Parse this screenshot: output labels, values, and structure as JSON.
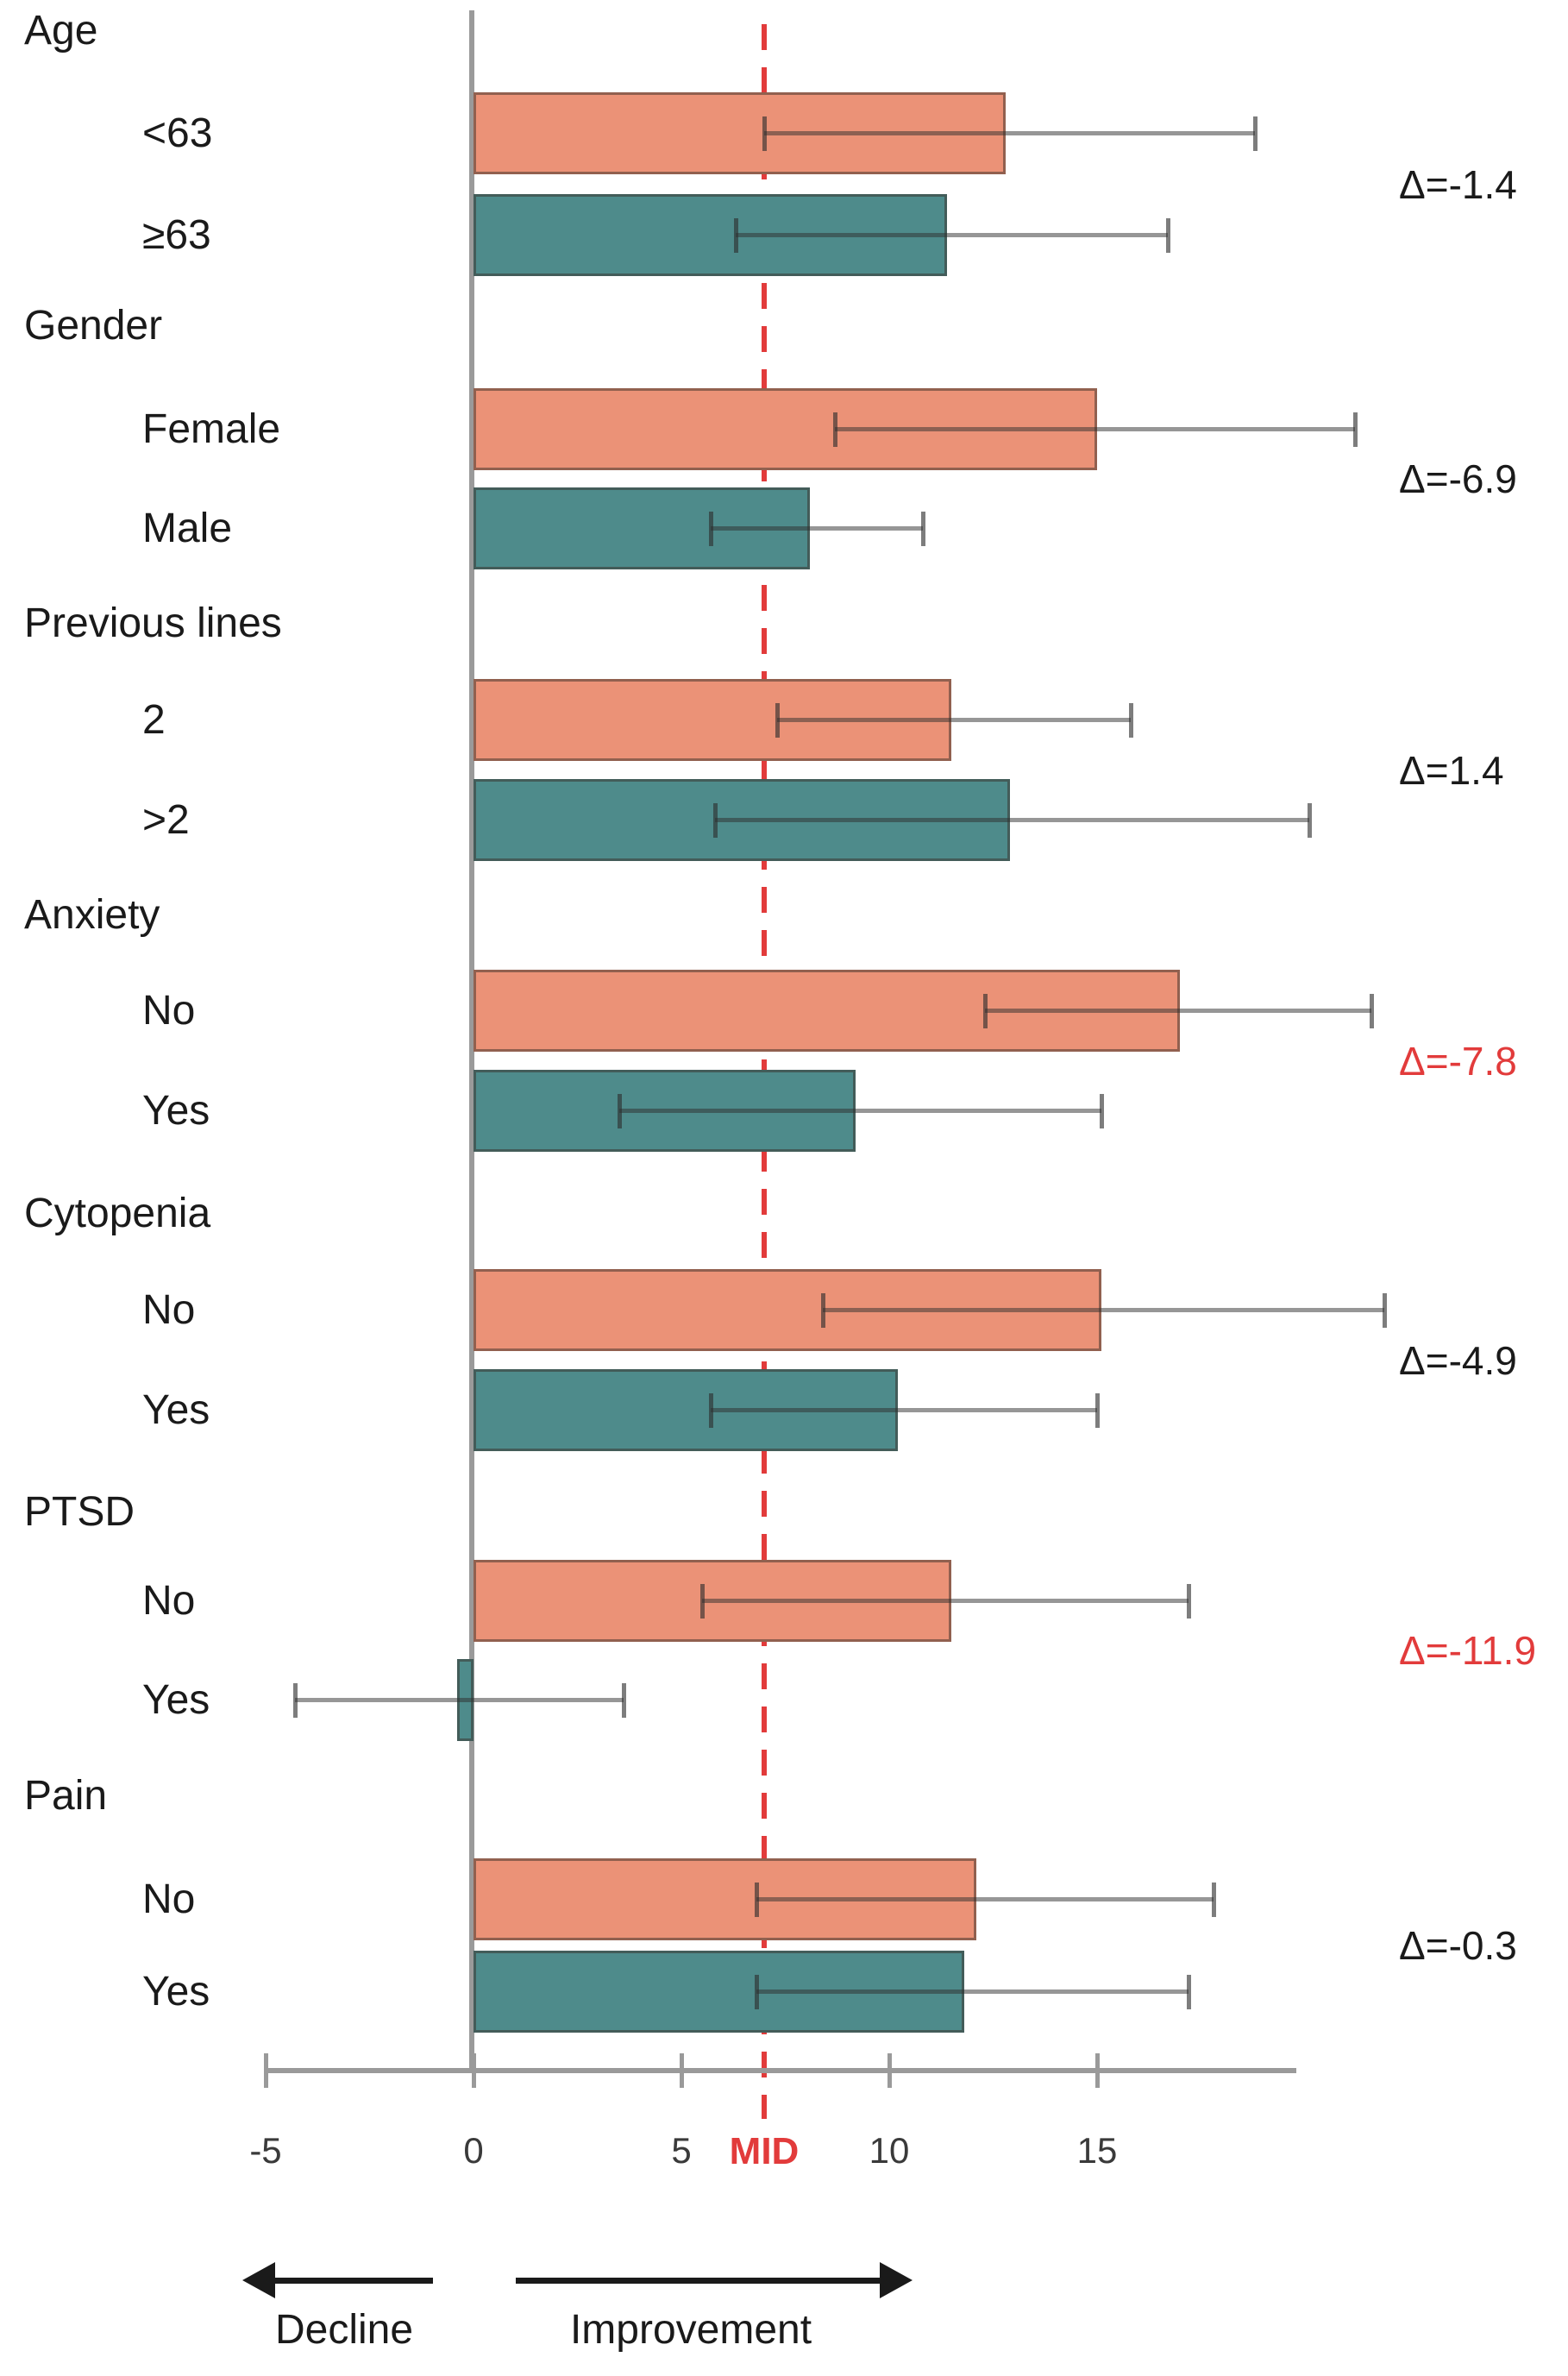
{
  "chart_data": {
    "type": "bar",
    "orientation": "horizontal",
    "title": "",
    "xlabel": "",
    "axis_ticks": [
      -5,
      0,
      5,
      10,
      15
    ],
    "xlim": [
      -5,
      19.8
    ],
    "mid_line": {
      "value": 7,
      "label": "MID",
      "style": "dashed"
    },
    "groups": [
      {
        "label": "Age",
        "delta": "Δ=-1.4",
        "delta_highlight": false,
        "rows": [
          {
            "label": "<63",
            "series": "first",
            "value": 12.8,
            "ci_low": 7.0,
            "ci_high": 18.8
          },
          {
            "label": "≥63",
            "series": "second",
            "value": 11.4,
            "ci_low": 6.3,
            "ci_high": 16.7
          }
        ]
      },
      {
        "label": "Gender",
        "delta": "Δ=-6.9",
        "delta_highlight": false,
        "rows": [
          {
            "label": "Female",
            "series": "first",
            "value": 15.0,
            "ci_low": 8.7,
            "ci_high": 21.2
          },
          {
            "label": "Male",
            "series": "second",
            "value": 8.1,
            "ci_low": 5.7,
            "ci_high": 10.8
          }
        ]
      },
      {
        "label": "Previous lines",
        "delta": "Δ=1.4",
        "delta_highlight": false,
        "rows": [
          {
            "label": "2",
            "series": "first",
            "value": 11.5,
            "ci_low": 7.3,
            "ci_high": 15.8
          },
          {
            "label": ">2",
            "series": "second",
            "value": 12.9,
            "ci_low": 5.8,
            "ci_high": 20.1
          }
        ]
      },
      {
        "label": "Anxiety",
        "delta": "Δ=-7.8",
        "delta_highlight": true,
        "rows": [
          {
            "label": "No",
            "series": "first",
            "value": 17.0,
            "ci_low": 12.3,
            "ci_high": 21.6
          },
          {
            "label": "Yes",
            "series": "second",
            "value": 9.2,
            "ci_low": 3.5,
            "ci_high": 15.1
          }
        ]
      },
      {
        "label": "Cytopenia",
        "delta": "Δ=-4.9",
        "delta_highlight": false,
        "rows": [
          {
            "label": "No",
            "series": "first",
            "value": 15.1,
            "ci_low": 8.4,
            "ci_high": 21.9
          },
          {
            "label": "Yes",
            "series": "second",
            "value": 10.2,
            "ci_low": 5.7,
            "ci_high": 15.0
          }
        ]
      },
      {
        "label": "PTSD",
        "delta": "Δ=-11.9",
        "delta_highlight": true,
        "rows": [
          {
            "label": "No",
            "series": "first",
            "value": 11.5,
            "ci_low": 5.5,
            "ci_high": 17.2
          },
          {
            "label": "Yes",
            "series": "second",
            "value": -0.4,
            "ci_low": -4.3,
            "ci_high": 3.6
          }
        ]
      },
      {
        "label": "Pain",
        "delta": "Δ=-0.3",
        "delta_highlight": false,
        "rows": [
          {
            "label": "No",
            "series": "first",
            "value": 12.1,
            "ci_low": 6.8,
            "ci_high": 17.8
          },
          {
            "label": "Yes",
            "series": "second",
            "value": 11.8,
            "ci_low": 6.8,
            "ci_high": 17.2
          }
        ]
      }
    ],
    "direction_arrows": {
      "left_label": "Decline",
      "right_label": "Improvement"
    },
    "colors": {
      "series_first": "#eb9277",
      "series_second": "#4e8b8b",
      "axis": "#9a9a9a",
      "reference_red": "#e23b3b",
      "text": "#1a1a1a",
      "tick_text": "#3a3a3a"
    },
    "legend_position": "none",
    "grid": false
  }
}
